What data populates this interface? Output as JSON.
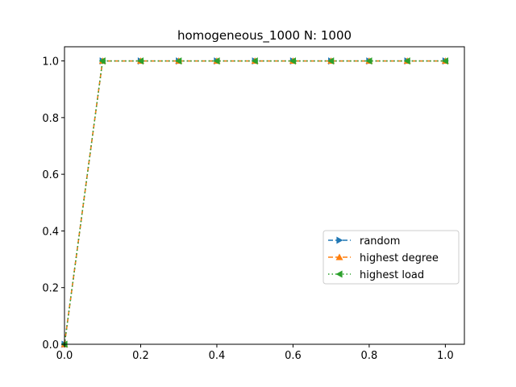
{
  "chart_data": {
    "type": "line",
    "title": "homogeneous_1000 N: 1000",
    "xlabel": "",
    "ylabel": "",
    "xlim": [
      0.0,
      1.05
    ],
    "ylim": [
      0.0,
      1.05
    ],
    "x_ticks": [
      0.0,
      0.2,
      0.4,
      0.6,
      0.8,
      1.0
    ],
    "x_tick_labels": [
      "0.0",
      "0.2",
      "0.4",
      "0.6",
      "0.8",
      "1.0"
    ],
    "y_ticks": [
      0.0,
      0.2,
      0.4,
      0.6,
      0.8,
      1.0
    ],
    "y_tick_labels": [
      "0.0",
      "0.2",
      "0.4",
      "0.6",
      "0.8",
      "1.0"
    ],
    "x": [
      0.0,
      0.1,
      0.2,
      0.3,
      0.4,
      0.5,
      0.6,
      0.7,
      0.8,
      0.9,
      1.0
    ],
    "series": [
      {
        "name": "random",
        "color": "#1f77b4",
        "marker": "triangle-right",
        "linestyle": "dashed",
        "values": [
          0.0,
          1.0,
          1.0,
          1.0,
          1.0,
          1.0,
          1.0,
          1.0,
          1.0,
          1.0,
          1.0
        ]
      },
      {
        "name": "highest degree",
        "color": "#ff7f0e",
        "marker": "triangle-up",
        "linestyle": "dashed",
        "values": [
          0.0,
          1.0,
          1.0,
          1.0,
          1.0,
          1.0,
          1.0,
          1.0,
          1.0,
          1.0,
          1.0
        ]
      },
      {
        "name": "highest load",
        "color": "#2ca02c",
        "marker": "triangle-left",
        "linestyle": "dotted",
        "values": [
          0.0,
          1.0,
          1.0,
          1.0,
          1.0,
          1.0,
          1.0,
          1.0,
          1.0,
          1.0,
          1.0
        ]
      }
    ],
    "grid": false,
    "legend_position": "center-right"
  }
}
